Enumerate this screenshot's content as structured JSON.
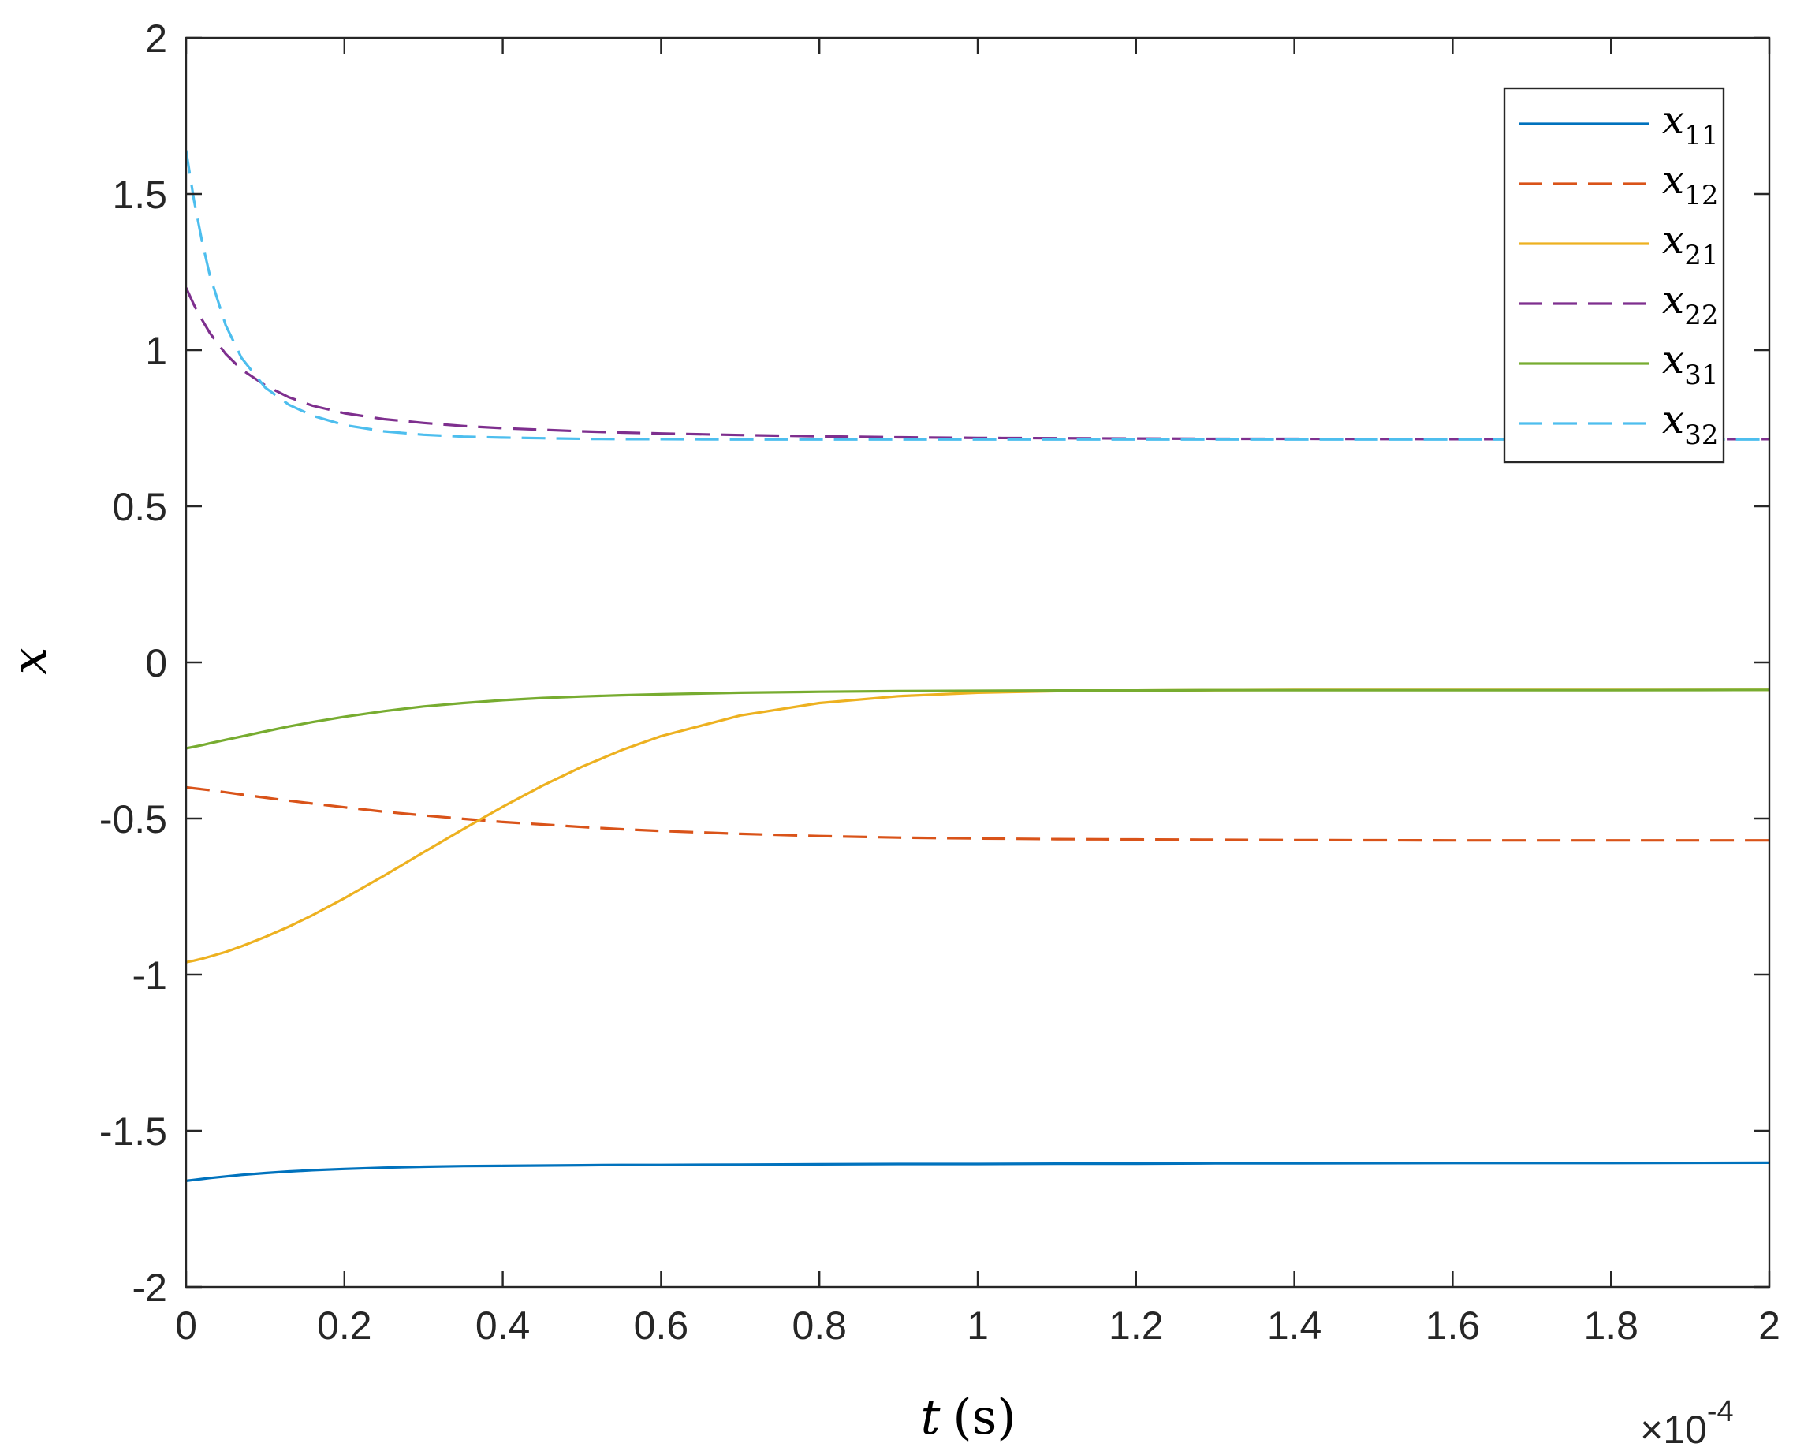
{
  "chart_data": {
    "type": "line",
    "title": "",
    "xlabel": {
      "var": "t",
      "unit": "(s)"
    },
    "ylabel": "x",
    "x_exponent_label": "×10",
    "x_exponent_power": "-4",
    "xlim": [
      0,
      2
    ],
    "ylim": [
      -2,
      2
    ],
    "xticks": [
      "0",
      "0.2",
      "0.4",
      "0.6",
      "0.8",
      "1",
      "1.2",
      "1.4",
      "1.6",
      "1.8",
      "2"
    ],
    "xtick_values": [
      0,
      0.2,
      0.4,
      0.6,
      0.8,
      1.0,
      1.2,
      1.4,
      1.6,
      1.8,
      2.0
    ],
    "yticks": [
      "2",
      "1.5",
      "1",
      "0.5",
      "0",
      "-0.5",
      "-1",
      "-1.5",
      "-2"
    ],
    "ytick_values": [
      2,
      1.5,
      1,
      0.5,
      0,
      -0.5,
      -1,
      -1.5,
      -2
    ],
    "grid": false,
    "legend_position": "top-right",
    "x": [
      0,
      0.01,
      0.02,
      0.03,
      0.05,
      0.07,
      0.1,
      0.13,
      0.16,
      0.2,
      0.25,
      0.3,
      0.35,
      0.4,
      0.45,
      0.5,
      0.55,
      0.6,
      0.7,
      0.8,
      0.9,
      1.0,
      1.1,
      1.2,
      1.3,
      1.4,
      1.6,
      1.8,
      2.0
    ],
    "series": [
      {
        "name": "x",
        "sub": "11",
        "color": "#0072BD",
        "dash": "solid",
        "values": [
          -1.66,
          -1.657,
          -1.654,
          -1.651,
          -1.646,
          -1.641,
          -1.635,
          -1.63,
          -1.626,
          -1.622,
          -1.618,
          -1.615,
          -1.613,
          -1.612,
          -1.611,
          -1.61,
          -1.609,
          -1.609,
          -1.608,
          -1.607,
          -1.606,
          -1.606,
          -1.605,
          -1.605,
          -1.604,
          -1.604,
          -1.603,
          -1.603,
          -1.602
        ]
      },
      {
        "name": "x",
        "sub": "12",
        "color": "#D95319",
        "dash": "dashed",
        "values": [
          -0.4,
          -0.403,
          -0.406,
          -0.409,
          -0.416,
          -0.423,
          -0.433,
          -0.443,
          -0.452,
          -0.464,
          -0.478,
          -0.49,
          -0.501,
          -0.511,
          -0.519,
          -0.527,
          -0.534,
          -0.54,
          -0.549,
          -0.556,
          -0.561,
          -0.564,
          -0.566,
          -0.567,
          -0.568,
          -0.569,
          -0.57,
          -0.57,
          -0.57
        ]
      },
      {
        "name": "x",
        "sub": "21",
        "color": "#EDB120",
        "dash": "solid",
        "values": [
          -0.96,
          -0.955,
          -0.949,
          -0.942,
          -0.927,
          -0.909,
          -0.879,
          -0.846,
          -0.809,
          -0.755,
          -0.683,
          -0.608,
          -0.534,
          -0.462,
          -0.395,
          -0.334,
          -0.281,
          -0.236,
          -0.17,
          -0.13,
          -0.108,
          -0.097,
          -0.092,
          -0.09,
          -0.089,
          -0.088,
          -0.088,
          -0.088,
          -0.088
        ]
      },
      {
        "name": "x",
        "sub": "22",
        "color": "#7E2F8E",
        "dash": "dashed",
        "values": [
          1.2,
          1.145,
          1.098,
          1.055,
          0.988,
          0.938,
          0.887,
          0.849,
          0.822,
          0.798,
          0.779,
          0.767,
          0.757,
          0.75,
          0.745,
          0.74,
          0.736,
          0.733,
          0.728,
          0.724,
          0.721,
          0.719,
          0.718,
          0.717,
          0.716,
          0.716,
          0.715,
          0.715,
          0.715
        ]
      },
      {
        "name": "x",
        "sub": "31",
        "color": "#77AC30",
        "dash": "solid",
        "values": [
          -0.275,
          -0.27,
          -0.265,
          -0.259,
          -0.248,
          -0.237,
          -0.221,
          -0.205,
          -0.191,
          -0.174,
          -0.156,
          -0.141,
          -0.13,
          -0.121,
          -0.114,
          -0.109,
          -0.105,
          -0.102,
          -0.097,
          -0.094,
          -0.092,
          -0.091,
          -0.09,
          -0.09,
          -0.089,
          -0.089,
          -0.089,
          -0.089,
          -0.088
        ]
      },
      {
        "name": "x",
        "sub": "32",
        "color": "#4DBEEE",
        "dash": "dashed",
        "values": [
          1.64,
          1.48,
          1.35,
          1.24,
          1.08,
          0.975,
          0.88,
          0.825,
          0.79,
          0.76,
          0.74,
          0.729,
          0.723,
          0.72,
          0.718,
          0.716,
          0.715,
          0.715,
          0.714,
          0.714,
          0.714,
          0.714,
          0.714,
          0.714,
          0.714,
          0.714,
          0.714,
          0.714,
          0.714
        ]
      }
    ]
  }
}
